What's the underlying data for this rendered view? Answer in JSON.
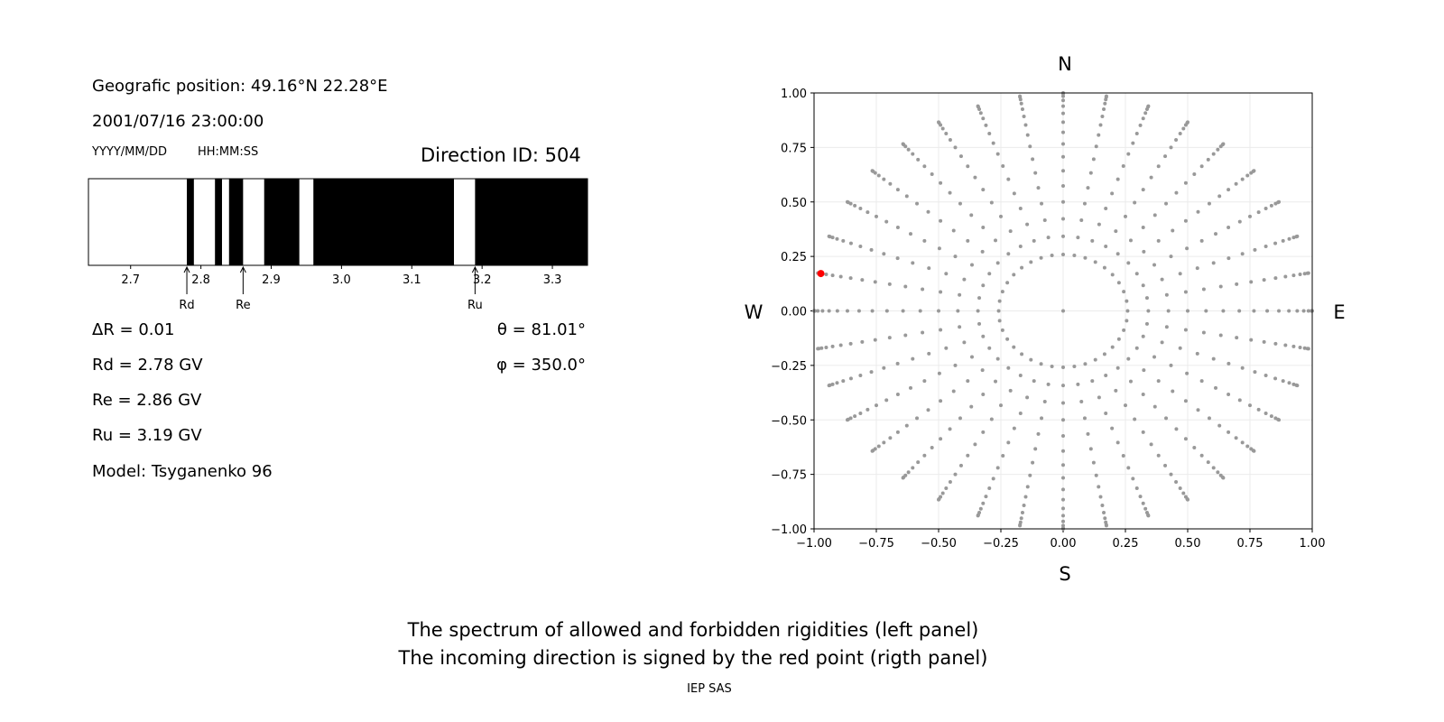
{
  "left_panel": {
    "position": "Geografic position: 49.16°N 22.28°E",
    "datetime": "2001/07/16 23:00:00",
    "date_format": "YYYY/MM/DD",
    "time_format": "HH:MM:SS",
    "direction": "Direction ID: 504",
    "delta_r": "ΔR = 0.01",
    "rd": "Rd = 2.78 GV",
    "re": "Re = 2.86 GV",
    "ru": "Ru = 3.19 GV",
    "model": "Model: Tsyganenko 96",
    "theta": "θ = 81.01°",
    "phi": "φ = 350.0°"
  },
  "captions": {
    "line1": "The spectrum of allowed and forbidden rigidities (left panel)",
    "line2": "The incoming direction is signed by the red point (rigth panel)",
    "credit": "IEP SAS"
  },
  "chart_data": [
    {
      "type": "bar",
      "subtype": "rigidity-spectrum",
      "xlim": [
        2.64,
        3.35
      ],
      "xticks": [
        "2.7",
        "2.8",
        "2.9",
        "3.0",
        "3.1",
        "3.2",
        "3.3"
      ],
      "allowed_color": "#ffffff",
      "forbidden_color": "#000000",
      "allowed_intervals": [
        [
          2.64,
          2.78
        ],
        [
          2.79,
          2.82
        ],
        [
          2.83,
          2.84
        ],
        [
          2.86,
          2.89
        ],
        [
          2.94,
          2.96
        ],
        [
          3.16,
          3.19
        ]
      ],
      "markers": [
        {
          "label": "Rd",
          "value": 2.78
        },
        {
          "label": "Re",
          "value": 2.86
        },
        {
          "label": "Ru",
          "value": 3.19
        }
      ]
    },
    {
      "type": "scatter",
      "subtype": "direction-grid",
      "xlim": [
        -1,
        1
      ],
      "ylim": [
        -1,
        1
      ],
      "xticks": [
        "−1.00",
        "−0.75",
        "−0.50",
        "−0.25",
        "0.00",
        "0.25",
        "0.50",
        "0.75",
        "1.00"
      ],
      "yticks": [
        "1.00",
        "0.75",
        "0.50",
        "0.25",
        "0.00",
        "−0.25",
        "−0.50",
        "−0.75",
        "−1.00"
      ],
      "grid": true,
      "compass": {
        "top": "N",
        "bottom": "S",
        "left": "W",
        "right": "E"
      },
      "azimuth_step_deg": 10,
      "zenith_deg": [
        15,
        20,
        25,
        30,
        35,
        40,
        45,
        50,
        55,
        60,
        65,
        70,
        75,
        80,
        85,
        90
      ],
      "point_color": "#999999",
      "highlight": {
        "theta_deg": 81.01,
        "phi_deg": 350.0,
        "color": "#ff0000"
      }
    }
  ]
}
